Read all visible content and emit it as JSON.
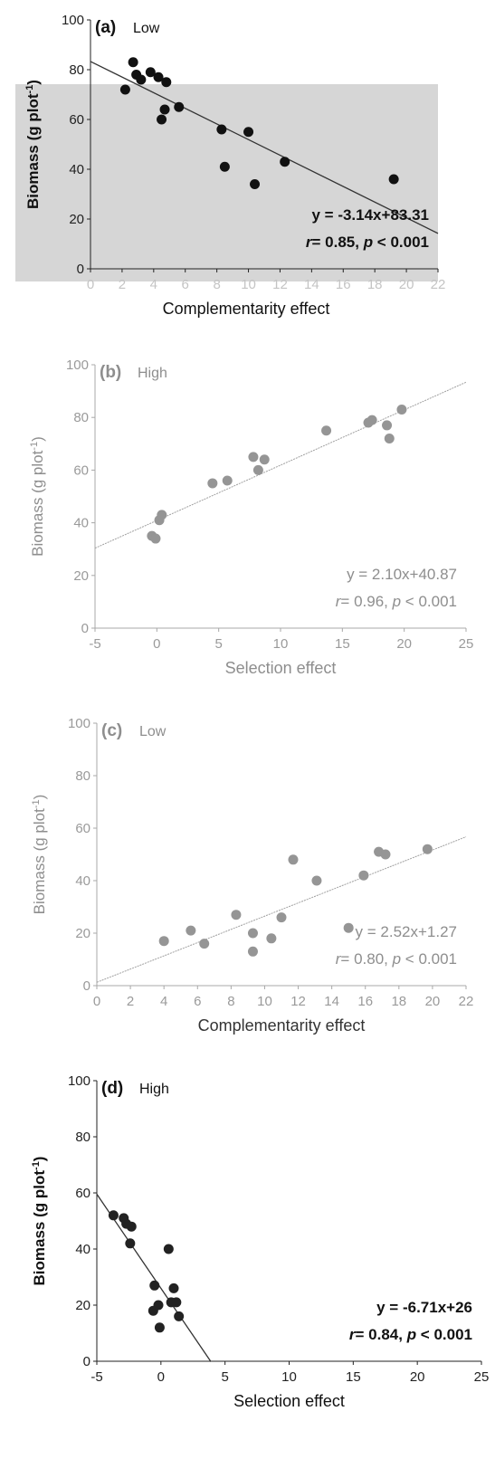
{
  "chart_data": [
    {
      "type": "scatter",
      "panel_label": "(a)",
      "panel_title": "Low",
      "xlabel": "Complementarity effect",
      "ylabel": "Biomass (g plot",
      "ylabel_sup": "-1",
      "ylabel_close": ")",
      "xlim": [
        0,
        22
      ],
      "ylim": [
        0,
        100
      ],
      "xticks": [
        "0",
        "2",
        "4",
        "6",
        "8",
        "10",
        "12",
        "14",
        "16",
        "18",
        "20",
        "22"
      ],
      "yticks": [
        "0",
        "20",
        "40",
        "60",
        "80",
        "100"
      ],
      "points": [
        {
          "x": 2.2,
          "y": 72
        },
        {
          "x": 2.7,
          "y": 83
        },
        {
          "x": 2.9,
          "y": 78
        },
        {
          "x": 3.2,
          "y": 76
        },
        {
          "x": 3.8,
          "y": 79
        },
        {
          "x": 4.3,
          "y": 77
        },
        {
          "x": 4.5,
          "y": 60
        },
        {
          "x": 4.7,
          "y": 64
        },
        {
          "x": 4.8,
          "y": 75
        },
        {
          "x": 5.6,
          "y": 65
        },
        {
          "x": 8.3,
          "y": 56
        },
        {
          "x": 8.5,
          "y": 41
        },
        {
          "x": 10.0,
          "y": 55
        },
        {
          "x": 10.4,
          "y": 34
        },
        {
          "x": 12.3,
          "y": 43
        },
        {
          "x": 19.2,
          "y": 36
        }
      ],
      "trend": {
        "slope": -3.14,
        "intercept": 83.31,
        "x_range": [
          0,
          22
        ]
      },
      "equation": "y = -3.14x+83.31",
      "stats_r": "= 0.85, ",
      "stats_p": " < 0.001",
      "colors": {
        "point": "#111111",
        "line": "#333333",
        "text": "#111111",
        "shade": "#d6d6d6"
      }
    },
    {
      "type": "scatter",
      "panel_label": "(b)",
      "panel_title": "High",
      "xlabel": "Selection effect",
      "ylabel": "Biomass (g plot",
      "ylabel_sup": "-1",
      "ylabel_close": ")",
      "xlim": [
        -5,
        25
      ],
      "ylim": [
        0,
        100
      ],
      "xticks": [
        "-5",
        "0",
        "5",
        "10",
        "15",
        "20",
        "25"
      ],
      "yticks": [
        "0",
        "20",
        "40",
        "60",
        "80",
        "100"
      ],
      "points": [
        {
          "x": -0.4,
          "y": 35
        },
        {
          "x": -0.1,
          "y": 34
        },
        {
          "x": 0.2,
          "y": 41
        },
        {
          "x": 0.4,
          "y": 43
        },
        {
          "x": 4.5,
          "y": 55
        },
        {
          "x": 5.7,
          "y": 56
        },
        {
          "x": 7.8,
          "y": 65
        },
        {
          "x": 8.2,
          "y": 60
        },
        {
          "x": 8.7,
          "y": 64
        },
        {
          "x": 13.7,
          "y": 75
        },
        {
          "x": 17.1,
          "y": 78
        },
        {
          "x": 17.4,
          "y": 79
        },
        {
          "x": 18.6,
          "y": 77
        },
        {
          "x": 18.8,
          "y": 72
        },
        {
          "x": 19.8,
          "y": 83
        }
      ],
      "trend": {
        "slope": 2.1,
        "intercept": 40.87,
        "x_range": [
          -5,
          25
        ]
      },
      "equation": "y = 2.10x+40.87",
      "stats_r": "= 0.96, ",
      "stats_p": " < 0.001",
      "colors": {
        "point": "#959595",
        "line": "#a0a0a0",
        "text": "#8e8e8e"
      }
    },
    {
      "type": "scatter",
      "panel_label": "(c)",
      "panel_title": "Low",
      "xlabel": "Complementarity effect",
      "ylabel": "Biomass (g plot",
      "ylabel_sup": "-1",
      "ylabel_close": ")",
      "xlim": [
        0,
        22
      ],
      "ylim": [
        0,
        100
      ],
      "xticks": [
        "0",
        "2",
        "4",
        "6",
        "8",
        "10",
        "12",
        "14",
        "16",
        "18",
        "20",
        "22"
      ],
      "yticks": [
        "0",
        "20",
        "40",
        "60",
        "80",
        "100"
      ],
      "points": [
        {
          "x": 4.0,
          "y": 17
        },
        {
          "x": 5.6,
          "y": 21
        },
        {
          "x": 6.4,
          "y": 16
        },
        {
          "x": 8.3,
          "y": 27
        },
        {
          "x": 9.3,
          "y": 13
        },
        {
          "x": 9.3,
          "y": 20
        },
        {
          "x": 10.4,
          "y": 18
        },
        {
          "x": 11.0,
          "y": 26
        },
        {
          "x": 11.7,
          "y": 48
        },
        {
          "x": 13.1,
          "y": 40
        },
        {
          "x": 15.0,
          "y": 22
        },
        {
          "x": 15.9,
          "y": 42
        },
        {
          "x": 16.8,
          "y": 51
        },
        {
          "x": 17.2,
          "y": 50
        },
        {
          "x": 19.7,
          "y": 52
        }
      ],
      "trend": {
        "slope": 2.52,
        "intercept": 1.27,
        "x_range": [
          0,
          22
        ]
      },
      "equation": "y = 2.52x+1.27",
      "stats_r": "= 0.80, ",
      "stats_p": " < 0.001",
      "colors": {
        "point": "#959595",
        "line": "#a0a0a0",
        "text": "#8e8e8e",
        "xlabel": "#333333"
      }
    },
    {
      "type": "scatter",
      "panel_label": "(d)",
      "panel_title": "High",
      "xlabel": "Selection effect",
      "ylabel": "Biomass (g plot",
      "ylabel_sup": "-1",
      "ylabel_close": ")",
      "xlim": [
        -5,
        25
      ],
      "ylim": [
        0,
        100
      ],
      "xticks": [
        "-5",
        "0",
        "5",
        "10",
        "15",
        "20",
        "25"
      ],
      "yticks": [
        "0",
        "20",
        "40",
        "60",
        "80",
        "100"
      ],
      "points": [
        {
          "x": -3.7,
          "y": 52
        },
        {
          "x": -2.9,
          "y": 51
        },
        {
          "x": -2.7,
          "y": 49
        },
        {
          "x": -2.3,
          "y": 48
        },
        {
          "x": -2.4,
          "y": 42
        },
        {
          "x": -0.5,
          "y": 27
        },
        {
          "x": -0.6,
          "y": 18
        },
        {
          "x": -0.2,
          "y": 20
        },
        {
          "x": -0.1,
          "y": 12
        },
        {
          "x": 0.6,
          "y": 40
        },
        {
          "x": 0.8,
          "y": 21
        },
        {
          "x": 1.0,
          "y": 26
        },
        {
          "x": 1.2,
          "y": 21
        },
        {
          "x": 1.4,
          "y": 16
        }
      ],
      "trend": {
        "slope": -6.71,
        "intercept": 26,
        "x_range": [
          -5,
          3.9
        ]
      },
      "equation": "y = -6.71x+26",
      "stats_r": "= 0.84, ",
      "stats_p": " < 0.001",
      "colors": {
        "point": "#222222",
        "line": "#333333",
        "text": "#111111"
      }
    }
  ]
}
